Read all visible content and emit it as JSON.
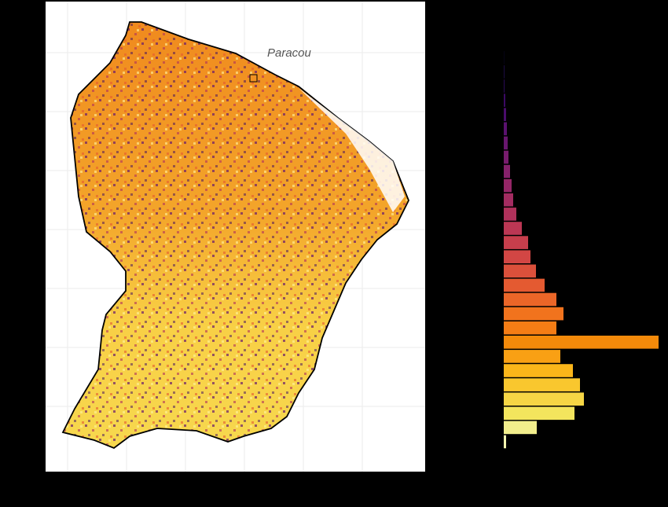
{
  "map": {
    "label": "Paracou"
  },
  "histogram": {
    "values": [
      0.5,
      1,
      1,
      2,
      3,
      4,
      5,
      6,
      8,
      10,
      12,
      16,
      23,
      31,
      34,
      41,
      52,
      67,
      76,
      67,
      197,
      72,
      88,
      97,
      102,
      90,
      42,
      3
    ],
    "colors": [
      "#0d0829",
      "#1b0c41",
      "#2a0b55",
      "#3b0964",
      "#4a0c6b",
      "#5a116e",
      "#68166e",
      "#781c6d",
      "#86216b",
      "#952667",
      "#a32c61",
      "#b0315b",
      "#bc3754",
      "#c73e4c",
      "#d24644",
      "#db503b",
      "#e45a31",
      "#eb6628",
      "#f1731d",
      "#f57d15",
      "#f48a0a",
      "#f9a014",
      "#fbb61a",
      "#f9c72e",
      "#f6d645",
      "#f3e55d",
      "#f2ee8c",
      "#f6f7b0"
    ]
  }
}
